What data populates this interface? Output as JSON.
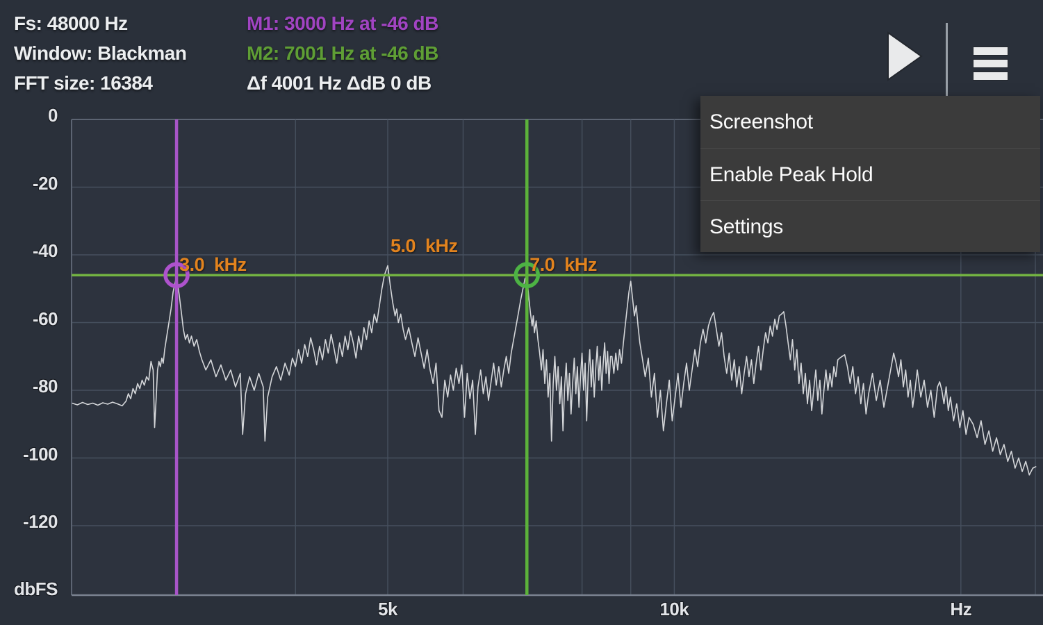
{
  "header": {
    "fs": "Fs: 48000 Hz",
    "window": "Window: Blackman",
    "fft": "FFT size: 16384",
    "m1": "M1: 3000 Hz at -46 dB",
    "m2": "M2: 7001 Hz at -46 dB",
    "delta": "Δf 4001 Hz ΔdB 0 dB",
    "colors": {
      "m1_text": "#a144c2",
      "m2_text": "#5f9e35",
      "stats_text": "#eceef0"
    }
  },
  "toolbar": {
    "play_icon": "play-triangle",
    "menu_icon": "hamburger-menu",
    "icon_color": "#e9eaeb"
  },
  "menu": {
    "items": [
      {
        "label": "Screenshot"
      },
      {
        "label": "Enable Peak Hold"
      },
      {
        "label": "Settings"
      }
    ],
    "bg": "#3b3b3b",
    "text_color": "#fbfbfb"
  },
  "chart_data": {
    "type": "line",
    "title": "FFT audio spectrum",
    "x_scale": "log",
    "x_unit": "Hz",
    "y_unit": "dbFS",
    "x_range_hz": [
      2330,
      24000
    ],
    "y_range_db": [
      -140,
      0
    ],
    "grid": true,
    "y_ticks": [
      0,
      -20,
      -40,
      -60,
      -80,
      -100,
      -120
    ],
    "y_axis_unit_label": "dbFS",
    "x_ticks": [
      {
        "hz": 5000,
        "label": "5k"
      },
      {
        "hz": 10000,
        "label": "10k"
      },
      {
        "hz": 20000,
        "label": "Hz"
      }
    ],
    "grid_hz": [
      3000,
      4000,
      5000,
      6000,
      7000,
      8000,
      9000,
      10000,
      20000
    ],
    "markers": [
      {
        "id": "M1",
        "hz": 3000,
        "db": -46,
        "color": "#a855c8",
        "circle_color": "#ae52cd"
      },
      {
        "id": "M2",
        "hz": 7001,
        "db": -46,
        "color": "#5cb23a",
        "circle_color": "#4db344"
      }
    ],
    "marker_hline_db": -46,
    "marker_hline_color": "#74b442",
    "peak_labels": [
      {
        "text": "3.0  kHz",
        "hz": 3000,
        "db": -43
      },
      {
        "text": "5.0  kHz",
        "hz": 5000,
        "db": -37.6
      },
      {
        "text": "7.0  kHz",
        "hz": 7001,
        "db": -43
      }
    ],
    "peaks_summary": [
      {
        "hz": 3000,
        "db": -46
      },
      {
        "hz": 5000,
        "db": -43
      },
      {
        "hz": 7000,
        "db": -46
      },
      {
        "hz": 9000,
        "db": -48
      },
      {
        "hz": 11000,
        "db": -57
      },
      {
        "hz": 13000,
        "db": -57
      },
      {
        "hz": 15000,
        "db": -70
      },
      {
        "hz": 17000,
        "db": -69
      },
      {
        "hz": 19000,
        "db": -77.5
      }
    ],
    "colors": {
      "bg": "#2a303a",
      "plot_bg": "#2d333e",
      "grid": "#46505e",
      "border": "#5c6472",
      "axis_line": "#7a8290",
      "trace": "#d4d6d9",
      "peak_label": "#e2831e",
      "axis_text": "#e3e5e9"
    },
    "trace": [
      [
        2330,
        -83.8
      ],
      [
        2360,
        -84.3
      ],
      [
        2390,
        -83.6
      ],
      [
        2420,
        -84.2
      ],
      [
        2450,
        -83.8
      ],
      [
        2480,
        -84.4
      ],
      [
        2510,
        -83.7
      ],
      [
        2540,
        -84.1
      ],
      [
        2570,
        -83.5
      ],
      [
        2600,
        -84.0
      ],
      [
        2630,
        -84.6
      ],
      [
        2655,
        -83.2
      ],
      [
        2670,
        -81
      ],
      [
        2685,
        -82.5
      ],
      [
        2700,
        -79.5
      ],
      [
        2715,
        -81
      ],
      [
        2730,
        -78
      ],
      [
        2745,
        -79.5
      ],
      [
        2760,
        -77
      ],
      [
        2775,
        -78.5
      ],
      [
        2790,
        -76
      ],
      [
        2805,
        -77
      ],
      [
        2820,
        -71.5
      ],
      [
        2835,
        -74
      ],
      [
        2845,
        -91
      ],
      [
        2855,
        -83
      ],
      [
        2865,
        -74
      ],
      [
        2875,
        -71.5
      ],
      [
        2885,
        -73
      ],
      [
        2895,
        -70.5
      ],
      [
        2905,
        -72
      ],
      [
        2915,
        -68
      ],
      [
        2930,
        -64
      ],
      [
        2945,
        -60
      ],
      [
        2960,
        -56
      ],
      [
        2975,
        -51
      ],
      [
        3000,
        -46.3
      ],
      [
        3020,
        -52
      ],
      [
        3035,
        -57
      ],
      [
        3050,
        -62
      ],
      [
        3065,
        -65
      ],
      [
        3080,
        -63.5
      ],
      [
        3095,
        -66
      ],
      [
        3110,
        -64
      ],
      [
        3130,
        -67
      ],
      [
        3150,
        -65
      ],
      [
        3170,
        -68.5
      ],
      [
        3190,
        -71
      ],
      [
        3220,
        -74
      ],
      [
        3260,
        -71
      ],
      [
        3300,
        -76
      ],
      [
        3340,
        -72.5
      ],
      [
        3380,
        -77
      ],
      [
        3420,
        -74
      ],
      [
        3460,
        -79
      ],
      [
        3500,
        -75
      ],
      [
        3520,
        -93
      ],
      [
        3545,
        -81
      ],
      [
        3580,
        -76
      ],
      [
        3620,
        -80
      ],
      [
        3660,
        -75
      ],
      [
        3700,
        -79
      ],
      [
        3715,
        -95
      ],
      [
        3740,
        -82
      ],
      [
        3780,
        -76
      ],
      [
        3820,
        -73
      ],
      [
        3860,
        -77
      ],
      [
        3900,
        -72
      ],
      [
        3940,
        -75.5
      ],
      [
        3970,
        -70.5
      ],
      [
        4000,
        -73
      ],
      [
        4030,
        -68
      ],
      [
        4060,
        -72
      ],
      [
        4090,
        -66.5
      ],
      [
        4120,
        -70
      ],
      [
        4150,
        -64.5
      ],
      [
        4180,
        -68
      ],
      [
        4210,
        -72.5
      ],
      [
        4240,
        -67
      ],
      [
        4270,
        -71
      ],
      [
        4300,
        -65
      ],
      [
        4330,
        -69
      ],
      [
        4360,
        -63.5
      ],
      [
        4390,
        -67.5
      ],
      [
        4420,
        -72
      ],
      [
        4450,
        -66
      ],
      [
        4480,
        -70
      ],
      [
        4510,
        -64
      ],
      [
        4540,
        -68
      ],
      [
        4570,
        -62.5
      ],
      [
        4600,
        -66
      ],
      [
        4630,
        -70.5
      ],
      [
        4660,
        -64
      ],
      [
        4690,
        -68
      ],
      [
        4720,
        -61.5
      ],
      [
        4750,
        -65
      ],
      [
        4780,
        -59.5
      ],
      [
        4810,
        -63
      ],
      [
        4840,
        -57.5
      ],
      [
        4870,
        -60
      ],
      [
        4900,
        -55
      ],
      [
        4930,
        -50
      ],
      [
        4960,
        -46
      ],
      [
        5000,
        -43.2
      ],
      [
        5030,
        -49
      ],
      [
        5060,
        -54
      ],
      [
        5090,
        -58
      ],
      [
        5110,
        -56
      ],
      [
        5130,
        -60
      ],
      [
        5160,
        -57.5
      ],
      [
        5190,
        -62
      ],
      [
        5220,
        -65
      ],
      [
        5260,
        -61.5
      ],
      [
        5300,
        -66
      ],
      [
        5340,
        -70
      ],
      [
        5380,
        -64.5
      ],
      [
        5420,
        -69
      ],
      [
        5460,
        -73.5
      ],
      [
        5500,
        -68
      ],
      [
        5540,
        -74
      ],
      [
        5580,
        -78
      ],
      [
        5620,
        -72
      ],
      [
        5660,
        -86
      ],
      [
        5700,
        -88
      ],
      [
        5740,
        -77
      ],
      [
        5780,
        -82
      ],
      [
        5820,
        -75.5
      ],
      [
        5860,
        -80
      ],
      [
        5900,
        -73.5
      ],
      [
        5940,
        -78
      ],
      [
        5980,
        -72.5
      ],
      [
        6020,
        -88
      ],
      [
        6060,
        -75
      ],
      [
        6100,
        -82.5
      ],
      [
        6140,
        -77
      ],
      [
        6180,
        -93
      ],
      [
        6220,
        -79
      ],
      [
        6260,
        -74
      ],
      [
        6300,
        -81
      ],
      [
        6340,
        -76
      ],
      [
        6380,
        -83
      ],
      [
        6420,
        -77.5
      ],
      [
        6460,
        -72
      ],
      [
        6500,
        -78.5
      ],
      [
        6540,
        -73
      ],
      [
        6580,
        -79
      ],
      [
        6620,
        -74
      ],
      [
        6660,
        -70
      ],
      [
        6700,
        -75
      ],
      [
        6740,
        -69
      ],
      [
        6780,
        -65
      ],
      [
        6820,
        -61
      ],
      [
        6860,
        -57
      ],
      [
        6900,
        -53
      ],
      [
        6940,
        -49.5
      ],
      [
        6970,
        -47
      ],
      [
        7001,
        -46.3
      ],
      [
        7030,
        -52
      ],
      [
        7060,
        -57
      ],
      [
        7090,
        -61
      ],
      [
        7110,
        -58
      ],
      [
        7130,
        -63
      ],
      [
        7160,
        -59.5
      ],
      [
        7190,
        -65
      ],
      [
        7220,
        -69
      ],
      [
        7250,
        -74
      ],
      [
        7280,
        -68
      ],
      [
        7310,
        -78
      ],
      [
        7340,
        -71
      ],
      [
        7370,
        -82
      ],
      [
        7400,
        -75
      ],
      [
        7430,
        -95
      ],
      [
        7460,
        -78
      ],
      [
        7490,
        -70
      ],
      [
        7520,
        -80
      ],
      [
        7550,
        -73
      ],
      [
        7580,
        -84
      ],
      [
        7610,
        -76
      ],
      [
        7640,
        -92
      ],
      [
        7670,
        -79
      ],
      [
        7700,
        -72
      ],
      [
        7730,
        -83
      ],
      [
        7760,
        -75
      ],
      [
        7790,
        -87
      ],
      [
        7820,
        -78
      ],
      [
        7850,
        -70.5
      ],
      [
        7880,
        -81
      ],
      [
        7910,
        -73
      ],
      [
        7940,
        -85
      ],
      [
        7970,
        -76
      ],
      [
        8000,
        -69
      ],
      [
        8030,
        -80
      ],
      [
        8060,
        -72
      ],
      [
        8090,
        -89
      ],
      [
        8120,
        -75
      ],
      [
        8150,
        -68
      ],
      [
        8180,
        -79
      ],
      [
        8210,
        -71
      ],
      [
        8240,
        -82
      ],
      [
        8270,
        -73.5
      ],
      [
        8300,
        -67
      ],
      [
        8330,
        -77
      ],
      [
        8360,
        -70
      ],
      [
        8390,
        -80
      ],
      [
        8420,
        -72
      ],
      [
        8450,
        -66
      ],
      [
        8480,
        -75
      ],
      [
        8510,
        -68.5
      ],
      [
        8540,
        -78
      ],
      [
        8570,
        -70
      ],
      [
        8600,
        -70
      ],
      [
        8640,
        -75
      ],
      [
        8680,
        -69
      ],
      [
        8720,
        -74
      ],
      [
        8760,
        -68
      ],
      [
        8800,
        -72
      ],
      [
        8840,
        -66
      ],
      [
        8880,
        -61
      ],
      [
        8920,
        -56
      ],
      [
        8960,
        -51
      ],
      [
        9000,
        -47.8
      ],
      [
        9040,
        -53
      ],
      [
        9080,
        -58
      ],
      [
        9120,
        -55
      ],
      [
        9160,
        -61
      ],
      [
        9200,
        -66
      ],
      [
        9250,
        -70
      ],
      [
        9320,
        -76
      ],
      [
        9390,
        -70.5
      ],
      [
        9460,
        -82
      ],
      [
        9530,
        -75
      ],
      [
        9600,
        -88
      ],
      [
        9670,
        -80
      ],
      [
        9740,
        -92
      ],
      [
        9810,
        -84
      ],
      [
        9880,
        -77
      ],
      [
        9950,
        -89
      ],
      [
        10020,
        -82
      ],
      [
        10090,
        -75
      ],
      [
        10160,
        -85
      ],
      [
        10230,
        -78
      ],
      [
        10300,
        -72
      ],
      [
        10370,
        -80
      ],
      [
        10440,
        -74
      ],
      [
        10510,
        -68
      ],
      [
        10580,
        -73
      ],
      [
        10650,
        -66
      ],
      [
        10720,
        -62
      ],
      [
        10790,
        -66
      ],
      [
        10860,
        -61
      ],
      [
        10930,
        -58.5
      ],
      [
        11000,
        -57
      ],
      [
        11070,
        -62
      ],
      [
        11140,
        -67
      ],
      [
        11210,
        -63
      ],
      [
        11280,
        -70
      ],
      [
        11350,
        -75
      ],
      [
        11420,
        -69
      ],
      [
        11490,
        -77
      ],
      [
        11560,
        -71
      ],
      [
        11630,
        -79
      ],
      [
        11700,
        -73
      ],
      [
        11770,
        -81
      ],
      [
        11840,
        -75
      ],
      [
        11910,
        -70
      ],
      [
        11980,
        -76
      ],
      [
        12050,
        -71
      ],
      [
        12120,
        -78
      ],
      [
        12190,
        -72
      ],
      [
        12260,
        -67
      ],
      [
        12330,
        -74
      ],
      [
        12400,
        -68
      ],
      [
        12470,
        -63
      ],
      [
        12540,
        -66
      ],
      [
        12610,
        -61
      ],
      [
        12680,
        -64
      ],
      [
        12750,
        -59
      ],
      [
        12820,
        -62
      ],
      [
        12890,
        -58
      ],
      [
        12960,
        -57.5
      ],
      [
        13030,
        -56.8
      ],
      [
        13100,
        -61
      ],
      [
        13170,
        -66
      ],
      [
        13240,
        -71
      ],
      [
        13310,
        -65
      ],
      [
        13380,
        -74
      ],
      [
        13450,
        -68
      ],
      [
        13520,
        -78
      ],
      [
        13590,
        -72
      ],
      [
        13660,
        -81
      ],
      [
        13730,
        -75
      ],
      [
        13800,
        -84
      ],
      [
        13870,
        -77
      ],
      [
        13940,
        -86
      ],
      [
        14010,
        -80
      ],
      [
        14080,
        -74
      ],
      [
        14150,
        -83
      ],
      [
        14220,
        -77
      ],
      [
        14290,
        -87
      ],
      [
        14360,
        -80
      ],
      [
        14430,
        -74
      ],
      [
        14500,
        -80
      ],
      [
        14570,
        -75
      ],
      [
        14640,
        -79
      ],
      [
        14710,
        -73
      ],
      [
        14780,
        -76
      ],
      [
        14850,
        -71
      ],
      [
        14920,
        -70.5
      ],
      [
        15000,
        -70
      ],
      [
        15100,
        -69.5
      ],
      [
        15200,
        -73
      ],
      [
        15300,
        -78
      ],
      [
        15400,
        -73
      ],
      [
        15500,
        -81
      ],
      [
        15600,
        -76
      ],
      [
        15700,
        -84
      ],
      [
        15800,
        -78
      ],
      [
        15900,
        -87
      ],
      [
        16000,
        -81
      ],
      [
        16150,
        -75
      ],
      [
        16300,
        -83
      ],
      [
        16450,
        -77
      ],
      [
        16600,
        -85
      ],
      [
        16750,
        -79
      ],
      [
        16900,
        -73
      ],
      [
        17000,
        -69
      ],
      [
        17100,
        -72
      ],
      [
        17200,
        -76
      ],
      [
        17300,
        -71
      ],
      [
        17400,
        -79
      ],
      [
        17500,
        -74
      ],
      [
        17600,
        -82
      ],
      [
        17700,
        -77
      ],
      [
        17800,
        -85
      ],
      [
        17900,
        -80
      ],
      [
        18000,
        -74
      ],
      [
        18150,
        -82
      ],
      [
        18300,
        -77
      ],
      [
        18450,
        -85
      ],
      [
        18600,
        -80
      ],
      [
        18750,
        -88
      ],
      [
        18900,
        -79
      ],
      [
        19000,
        -77.5
      ],
      [
        19100,
        -80
      ],
      [
        19200,
        -84
      ],
      [
        19300,
        -79
      ],
      [
        19400,
        -86
      ],
      [
        19500,
        -82
      ],
      [
        19650,
        -89
      ],
      [
        19800,
        -84
      ],
      [
        19950,
        -91
      ],
      [
        20100,
        -86
      ],
      [
        20250,
        -93
      ],
      [
        20400,
        -88
      ],
      [
        20600,
        -90
      ],
      [
        20800,
        -94
      ],
      [
        21000,
        -89
      ],
      [
        21200,
        -96
      ],
      [
        21400,
        -92
      ],
      [
        21600,
        -98
      ],
      [
        21800,
        -94
      ],
      [
        22000,
        -99
      ],
      [
        22200,
        -96
      ],
      [
        22400,
        -101
      ],
      [
        22600,
        -98
      ],
      [
        22800,
        -103
      ],
      [
        23000,
        -100
      ],
      [
        23200,
        -104
      ],
      [
        23400,
        -101
      ],
      [
        23600,
        -105
      ],
      [
        23800,
        -103
      ],
      [
        24000,
        -102.5
      ]
    ]
  }
}
